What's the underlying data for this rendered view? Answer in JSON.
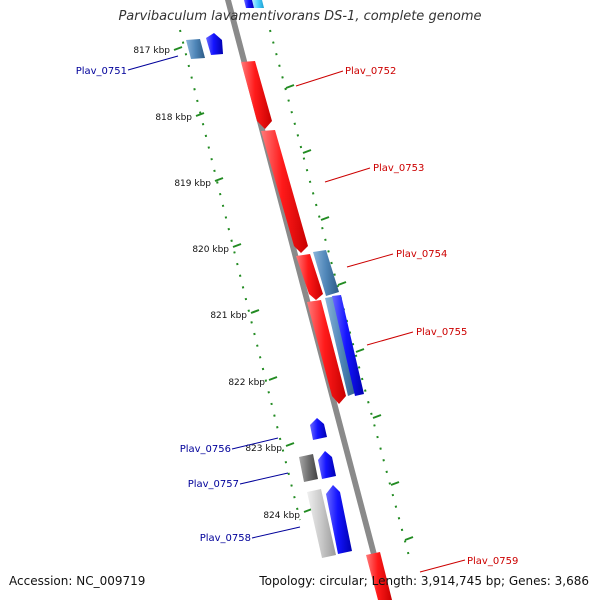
{
  "title": "Parvibaculum lavamentivorans DS-1, complete genome",
  "accession": "Accession: NC_009719",
  "summary": "Topology: circular; Length: 3,914,745 bp; Genes: 3,686",
  "ticks": [
    {
      "label": "817 kbp"
    },
    {
      "label": "818 kbp"
    },
    {
      "label": "819 kbp"
    },
    {
      "label": "820 kbp"
    },
    {
      "label": "821 kbp"
    },
    {
      "label": "822 kbp"
    },
    {
      "label": "823 kbp"
    },
    {
      "label": "824 kbp"
    }
  ],
  "genes": [
    {
      "name": "Plav_0751",
      "strand": "reverse"
    },
    {
      "name": "Plav_0752",
      "strand": "forward"
    },
    {
      "name": "Plav_0753",
      "strand": "forward"
    },
    {
      "name": "Plav_0754",
      "strand": "forward"
    },
    {
      "name": "Plav_0755",
      "strand": "forward"
    },
    {
      "name": "Plav_0756",
      "strand": "reverse"
    },
    {
      "name": "Plav_0757",
      "strand": "reverse"
    },
    {
      "name": "Plav_0758",
      "strand": "reverse"
    },
    {
      "name": "Plav_0759",
      "strand": "forward"
    }
  ],
  "colors": {
    "forward_gene": "#ff2a2a",
    "reverse_gene": "#1a1aff",
    "steelblue_feature": "#4f86b8",
    "gray_feature": "#8c8c8c",
    "backbone": "#8a8a8a",
    "tick": "#228b22",
    "forward_label": "#cc0000",
    "reverse_label": "#00009a"
  }
}
